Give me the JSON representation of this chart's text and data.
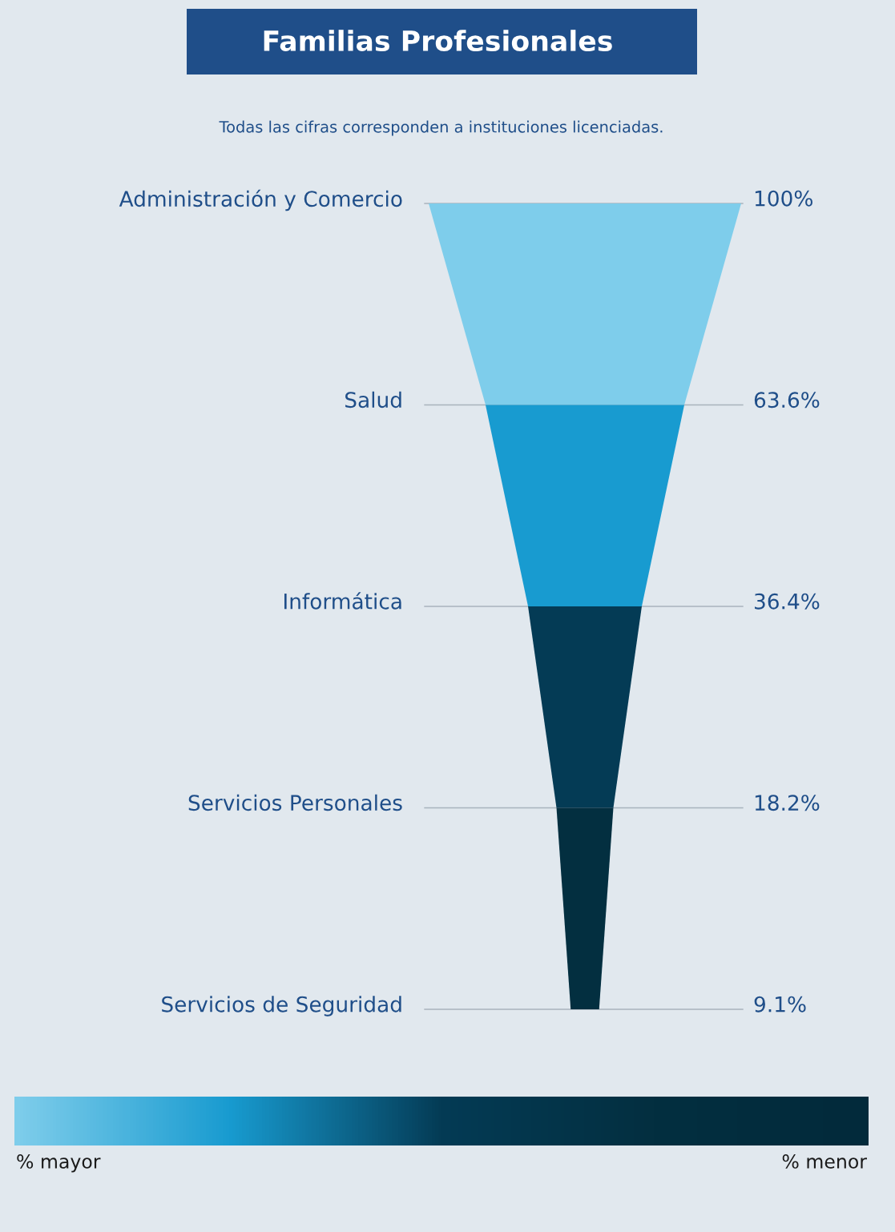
{
  "chart_data": {
    "type": "other",
    "title": "Familias Profesionales",
    "subtitle": "Todas las cifras corresponden a instituciones licenciadas.",
    "categories": [
      "Administración y Comercio",
      "Salud",
      "Informática",
      "Servicios Personales",
      "Servicios de Seguridad"
    ],
    "values": [
      100,
      63.6,
      36.4,
      18.2,
      9.1
    ],
    "value_labels": [
      "100%",
      "63.6%",
      "36.4%",
      "18.2%",
      "9.1%"
    ],
    "colors": [
      "#7ecdeb",
      "#189bd0",
      "#043b55",
      "#032f40",
      "#022a3b"
    ],
    "annotations": [
      "% mayor",
      "% menor"
    ]
  }
}
